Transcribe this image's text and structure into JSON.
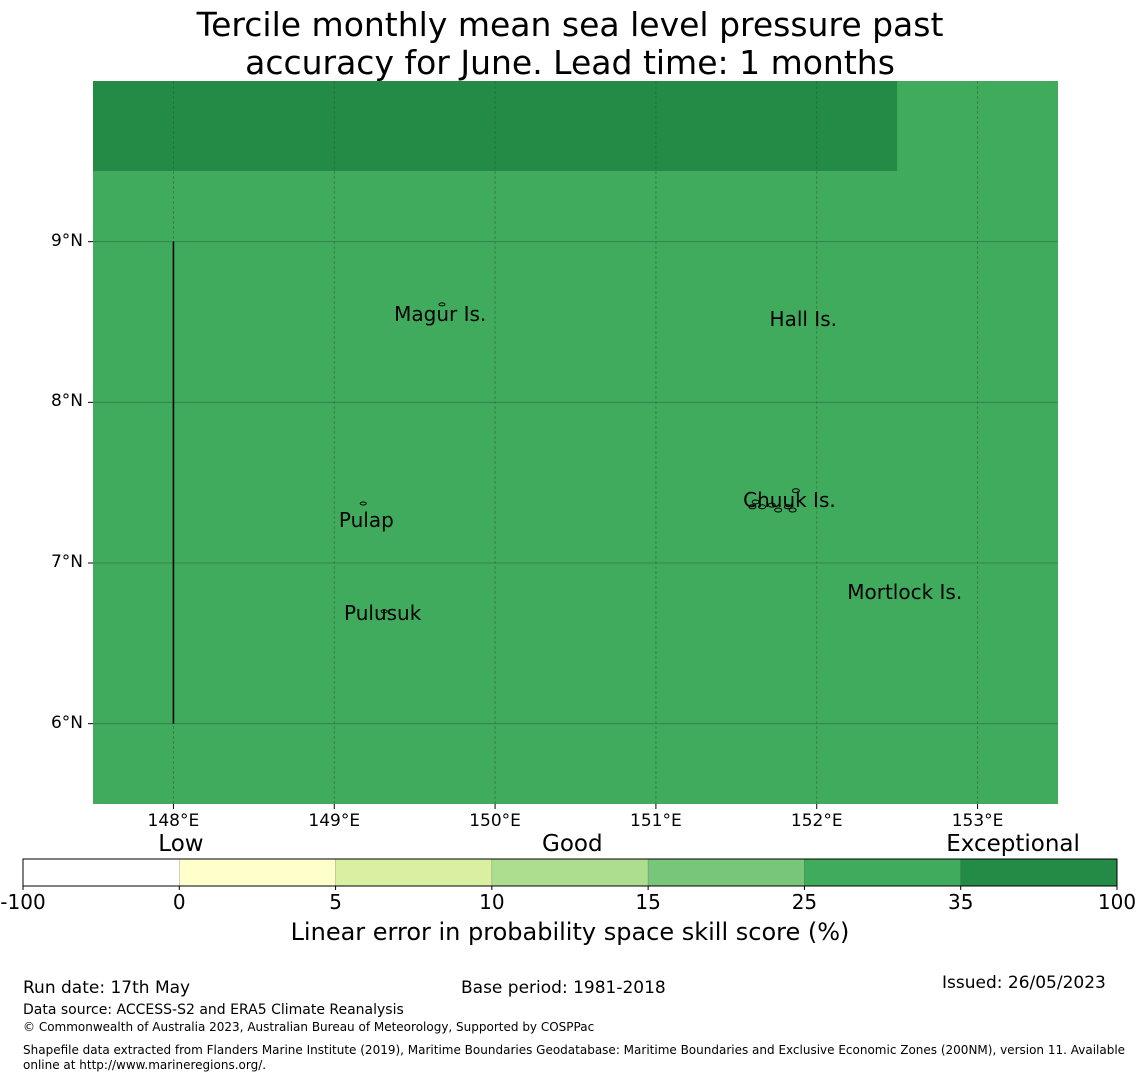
{
  "title": {
    "line1": "Tercile monthly mean sea level pressure past",
    "line2": "accuracy for June. Lead time: 1 months"
  },
  "map": {
    "lon_range": [
      147.5,
      153.5
    ],
    "lat_range": [
      5.5,
      10.0
    ],
    "grid_lines": true,
    "lon_ticks": [
      "148°E",
      "149°E",
      "150°E",
      "151°E",
      "152°E",
      "153°E"
    ],
    "lat_ticks": [
      "9°N",
      "8°N",
      "7°N",
      "6°N"
    ],
    "base_fill_color": "#41ab5d",
    "high_skill_fill_color": "#238b45",
    "high_skill_region": {
      "category": "35-100",
      "lon_range": [
        147.5,
        152.5
      ],
      "lat_range": [
        9.44,
        10.0
      ]
    },
    "boundary_line": {
      "lon": 148.0,
      "lat_range": [
        6.0,
        9.0
      ]
    },
    "places": [
      {
        "name": "Magur Is.",
        "lon": 149.68,
        "lat": 8.55
      },
      {
        "name": "Hall Is.",
        "lon": 151.98,
        "lat": 8.52
      },
      {
        "name": "Pulap",
        "lon": 149.2,
        "lat": 7.27
      },
      {
        "name": "Chuuk Is.",
        "lon": 151.85,
        "lat": 7.39
      },
      {
        "name": "Mortlock Is.",
        "lon": 152.6,
        "lat": 6.82
      },
      {
        "name": "Pulusuk",
        "lon": 149.3,
        "lat": 6.69
      }
    ]
  },
  "colorbar": {
    "category_labels": [
      {
        "text": "Low",
        "at": 1
      },
      {
        "text": "Good",
        "at": 3.5
      },
      {
        "text": "Exceptional",
        "at": 6.4
      }
    ],
    "ticks": [
      "-100",
      "0",
      "5",
      "10",
      "15",
      "25",
      "35",
      "100"
    ],
    "colors": [
      "#ffffff",
      "#ffffcc",
      "#d9f0a3",
      "#addd8e",
      "#78c679",
      "#41ab5d",
      "#238b45"
    ],
    "title": "Linear error in probability space skill score (%)"
  },
  "footer": {
    "run_date": "Run date: 17th May",
    "base_period": "Base period: 1981-2018",
    "issued": "Issued: 26/05/2023",
    "data_source": "Data source: ACCESS-S2 and ERA5 Climate Reanalysis",
    "copyright": "© Commonwealth of Australia 2023, Australian Bureau of Meteorology, Supported by COSPPac",
    "shapefile_line1": "Shapefile data extracted from Flanders Marine Institute (2019), Maritime Boundaries Geodatabase: Maritime Boundaries and Exclusive Economic Zones (200NM), version 11. Available",
    "shapefile_line2": "online at http://www.marineregions.org/."
  }
}
